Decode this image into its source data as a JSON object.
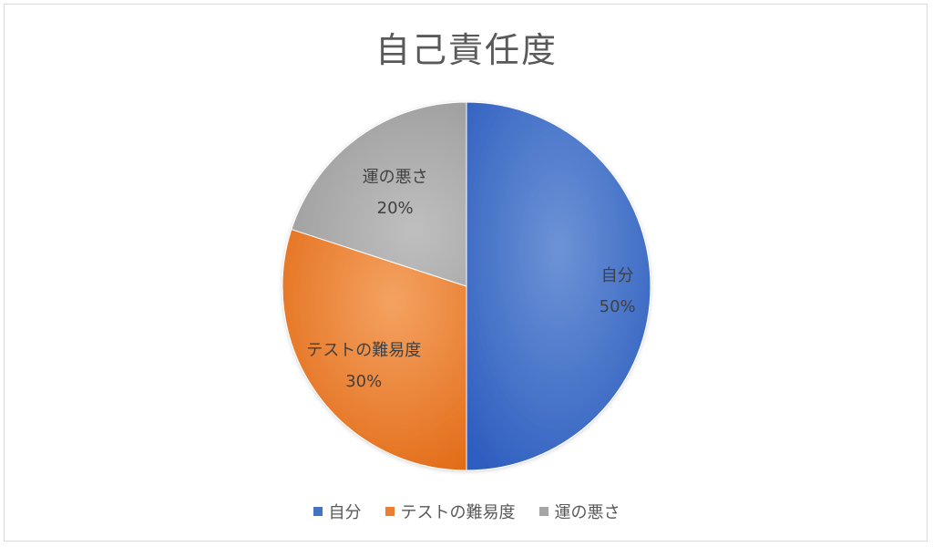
{
  "chart_data": {
    "type": "pie",
    "title": "自己責任度",
    "categories": [
      "自分",
      "テストの難易度",
      "運の悪さ"
    ],
    "values": [
      50,
      30,
      20
    ],
    "value_labels": [
      "50%",
      "30%",
      "20%"
    ],
    "colors": [
      "#4472c4",
      "#ed7d31",
      "#a5a5a5"
    ],
    "legend_position": "bottom",
    "data_labels": "category and percentage"
  }
}
